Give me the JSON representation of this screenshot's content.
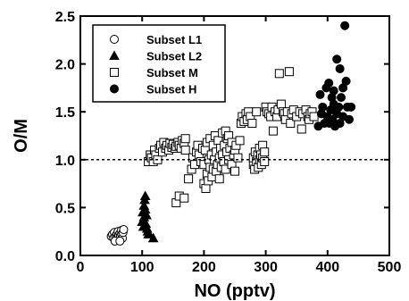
{
  "chart_data": {
    "type": "scatter",
    "xlabel": "NO (pptv)",
    "ylabel": "O/M",
    "xlim": [
      0,
      500
    ],
    "ylim": [
      0,
      2.5
    ],
    "xticks": [
      0,
      100,
      200,
      300,
      400,
      500
    ],
    "yticks": [
      0.0,
      0.5,
      1.0,
      1.5,
      2.0,
      2.5
    ],
    "xtick_labels": [
      "0",
      "100",
      "200",
      "300",
      "400",
      "500"
    ],
    "ytick_labels": [
      "0.0",
      "0.5",
      "1.0",
      "1.5",
      "2.0",
      "2.5"
    ],
    "reference_line": {
      "y": 1.0,
      "style": "dashed"
    },
    "legend_position": "top-left",
    "grid": false,
    "series": [
      {
        "name": "Subset L1",
        "marker": "open-circle",
        "points": [
          [
            50,
            0.2
          ],
          [
            52,
            0.22
          ],
          [
            54,
            0.18
          ],
          [
            55,
            0.24
          ],
          [
            57,
            0.2
          ],
          [
            58,
            0.16
          ],
          [
            59,
            0.22
          ],
          [
            60,
            0.19
          ],
          [
            61,
            0.25
          ],
          [
            62,
            0.21
          ],
          [
            63,
            0.17
          ],
          [
            64,
            0.23
          ],
          [
            65,
            0.2
          ],
          [
            66,
            0.26
          ],
          [
            67,
            0.22
          ],
          [
            68,
            0.18
          ],
          [
            69,
            0.24
          ],
          [
            70,
            0.27
          ],
          [
            56,
            0.15
          ],
          [
            64,
            0.15
          ]
        ]
      },
      {
        "name": "Subset L2",
        "marker": "filled-triangle",
        "points": [
          [
            100,
            0.35
          ],
          [
            101,
            0.45
          ],
          [
            102,
            0.3
          ],
          [
            103,
            0.52
          ],
          [
            103,
            0.4
          ],
          [
            104,
            0.58
          ],
          [
            105,
            0.62
          ],
          [
            105,
            0.48
          ],
          [
            106,
            0.33
          ],
          [
            107,
            0.42
          ],
          [
            108,
            0.28
          ],
          [
            109,
            0.25
          ],
          [
            110,
            0.22
          ],
          [
            118,
            0.18
          ]
        ]
      },
      {
        "name": "Subset M",
        "marker": "open-square",
        "points": [
          [
            110,
            0.98
          ],
          [
            113,
            1.05
          ],
          [
            115,
            1.02
          ],
          [
            118,
            0.98
          ],
          [
            120,
            1.1
          ],
          [
            122,
            1.05
          ],
          [
            125,
            1.0
          ],
          [
            128,
            1.12
          ],
          [
            130,
            1.15
          ],
          [
            133,
            1.08
          ],
          [
            135,
            1.18
          ],
          [
            138,
            1.12
          ],
          [
            140,
            1.15
          ],
          [
            143,
            1.1
          ],
          [
            145,
            1.17
          ],
          [
            148,
            1.13
          ],
          [
            150,
            1.16
          ],
          [
            153,
            1.12
          ],
          [
            155,
            1.14
          ],
          [
            158,
            1.18
          ],
          [
            160,
            1.15
          ],
          [
            163,
            1.12
          ],
          [
            165,
            1.2
          ],
          [
            168,
            1.17
          ],
          [
            170,
            1.1
          ],
          [
            170,
            1.22
          ],
          [
            155,
            0.55
          ],
          [
            160,
            0.62
          ],
          [
            168,
            0.6
          ],
          [
            175,
            0.8
          ],
          [
            180,
            0.9
          ],
          [
            182,
            1.02
          ],
          [
            185,
            0.95
          ],
          [
            188,
            1.08
          ],
          [
            190,
            1.15
          ],
          [
            192,
            1.05
          ],
          [
            195,
            0.98
          ],
          [
            198,
            1.12
          ],
          [
            200,
            0.75
          ],
          [
            200,
            0.95
          ],
          [
            202,
            1.1
          ],
          [
            203,
            0.7
          ],
          [
            205,
            0.85
          ],
          [
            205,
            1.18
          ],
          [
            207,
            0.78
          ],
          [
            208,
            1.0
          ],
          [
            210,
            0.92
          ],
          [
            210,
            1.22
          ],
          [
            212,
            1.05
          ],
          [
            213,
            0.82
          ],
          [
            215,
            0.9
          ],
          [
            215,
            1.15
          ],
          [
            217,
            1.0
          ],
          [
            218,
            1.25
          ],
          [
            220,
            0.88
          ],
          [
            220,
            1.08
          ],
          [
            222,
            0.95
          ],
          [
            223,
            1.2
          ],
          [
            225,
            1.02
          ],
          [
            225,
            0.8
          ],
          [
            227,
            1.12
          ],
          [
            228,
            0.92
          ],
          [
            230,
            1.28
          ],
          [
            230,
            1.05
          ],
          [
            232,
            0.98
          ],
          [
            233,
            1.15
          ],
          [
            235,
            1.3
          ],
          [
            235,
            0.9
          ],
          [
            237,
            1.08
          ],
          [
            238,
            1.22
          ],
          [
            240,
            1.0
          ],
          [
            240,
            1.25
          ],
          [
            242,
            1.12
          ],
          [
            245,
            0.95
          ],
          [
            245,
            1.18
          ],
          [
            248,
            1.05
          ],
          [
            250,
            1.1
          ],
          [
            250,
            0.88
          ],
          [
            252,
            1.15
          ],
          [
            255,
            1.02
          ],
          [
            258,
            1.2
          ],
          [
            260,
            1.38
          ],
          [
            262,
            1.45
          ],
          [
            265,
            1.4
          ],
          [
            268,
            1.48
          ],
          [
            270,
            1.42
          ],
          [
            272,
            1.5
          ],
          [
            275,
            1.45
          ],
          [
            278,
            1.38
          ],
          [
            280,
            0.95
          ],
          [
            280,
            1.02
          ],
          [
            282,
            0.9
          ],
          [
            283,
            1.08
          ],
          [
            285,
            0.98
          ],
          [
            285,
            1.5
          ],
          [
            287,
            1.05
          ],
          [
            288,
            0.92
          ],
          [
            290,
            1.0
          ],
          [
            290,
            1.12
          ],
          [
            292,
            1.05
          ],
          [
            293,
            0.95
          ],
          [
            295,
            1.02
          ],
          [
            295,
            1.15
          ],
          [
            298,
            0.98
          ],
          [
            298,
            1.08
          ],
          [
            300,
            1.55
          ],
          [
            302,
            1.5
          ],
          [
            305,
            1.48
          ],
          [
            308,
            1.45
          ],
          [
            310,
            1.55
          ],
          [
            312,
            1.3
          ],
          [
            315,
            1.5
          ],
          [
            318,
            1.45
          ],
          [
            320,
            1.52
          ],
          [
            322,
            1.9
          ],
          [
            325,
            1.58
          ],
          [
            328,
            1.5
          ],
          [
            330,
            1.48
          ],
          [
            332,
            1.42
          ],
          [
            335,
            1.5
          ],
          [
            338,
            1.92
          ],
          [
            340,
            1.38
          ],
          [
            342,
            1.48
          ],
          [
            345,
            1.52
          ],
          [
            350,
            1.45
          ],
          [
            355,
            1.5
          ],
          [
            358,
            1.32
          ],
          [
            360,
            1.48
          ],
          [
            365,
            1.52
          ],
          [
            368,
            1.45
          ],
          [
            370,
            1.42
          ],
          [
            372,
            1.48
          ],
          [
            375,
            1.5
          ],
          [
            378,
            1.45
          ]
        ]
      },
      {
        "name": "Subset H",
        "marker": "filled-circle",
        "points": [
          [
            385,
            1.35
          ],
          [
            388,
            1.68
          ],
          [
            390,
            1.48
          ],
          [
            392,
            1.55
          ],
          [
            395,
            1.38
          ],
          [
            398,
            1.75
          ],
          [
            400,
            1.45
          ],
          [
            402,
            1.8
          ],
          [
            403,
            1.38
          ],
          [
            405,
            1.52
          ],
          [
            407,
            1.65
          ],
          [
            408,
            1.42
          ],
          [
            410,
            1.72
          ],
          [
            410,
            1.58
          ],
          [
            412,
            1.35
          ],
          [
            415,
            2.05
          ],
          [
            415,
            1.48
          ],
          [
            418,
            1.55
          ],
          [
            420,
            1.95
          ],
          [
            420,
            1.38
          ],
          [
            422,
            1.65
          ],
          [
            425,
            1.75
          ],
          [
            425,
            1.45
          ],
          [
            428,
            2.4
          ],
          [
            430,
            1.82
          ],
          [
            432,
            1.55
          ],
          [
            435,
            1.42
          ],
          [
            438,
            1.55
          ]
        ]
      }
    ]
  }
}
